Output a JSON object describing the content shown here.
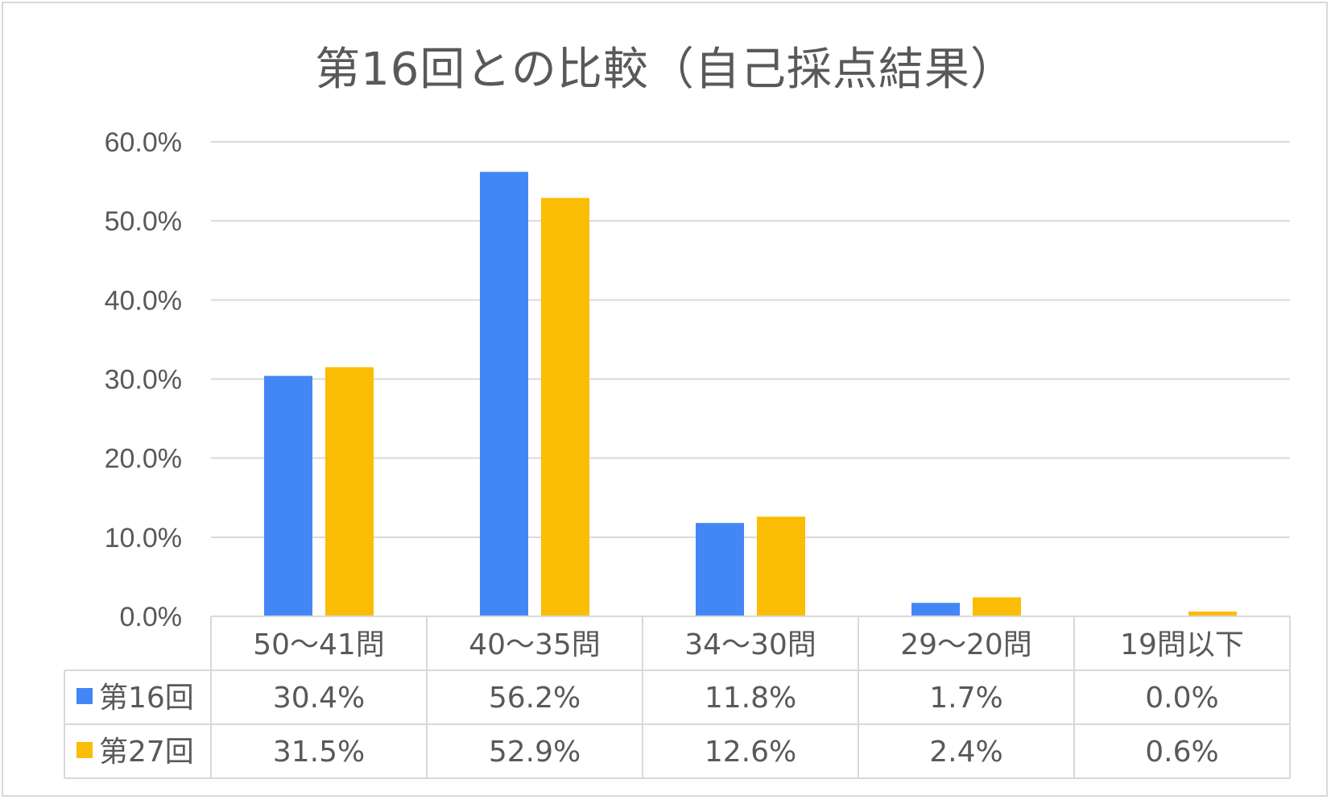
{
  "chart_data": {
    "type": "bar",
    "title": "第16回との比較（自己採点結果）",
    "categories": [
      "50～41問",
      "40～35問",
      "34～30問",
      "29～20問",
      "19問以下"
    ],
    "series": [
      {
        "name": "第16回",
        "color": "#4287f5",
        "values": [
          30.4,
          56.2,
          11.8,
          1.7,
          0.0
        ],
        "labels": [
          "30.4%",
          "56.2%",
          "11.8%",
          "1.7%",
          "0.0%"
        ]
      },
      {
        "name": "第27回",
        "color": "#fbbc04",
        "values": [
          31.5,
          52.9,
          12.6,
          2.4,
          0.6
        ],
        "labels": [
          "31.5%",
          "52.9%",
          "12.6%",
          "2.4%",
          "0.6%"
        ]
      }
    ],
    "yticks": [
      "0.0%",
      "10.0%",
      "20.0%",
      "30.0%",
      "40.0%",
      "50.0%",
      "60.0%"
    ],
    "ylim": [
      0,
      60
    ],
    "grid": true,
    "legend": "data-table"
  }
}
